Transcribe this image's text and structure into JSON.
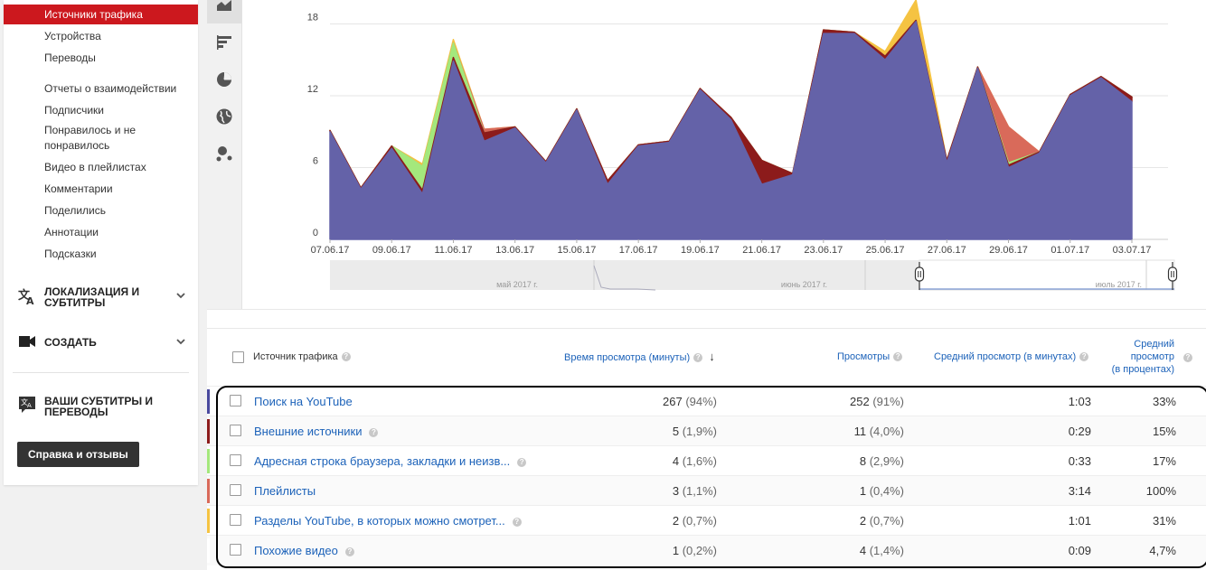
{
  "sidebar": {
    "active": "Источники трафика",
    "items": [
      "Устройства",
      "Переводы",
      "Отчеты о взаимодействии",
      "Подписчики",
      "Понравилось и не понравилось",
      "Видео в плейлистах",
      "Комментарии",
      "Поделились",
      "Аннотации",
      "Подсказки"
    ],
    "sections": [
      {
        "label": "Локализация и субтитры",
        "icon": "translate-icon"
      },
      {
        "label": "Создать",
        "icon": "video-camera-icon"
      },
      {
        "label": "Ваши субтитры и переводы",
        "icon": "subtitles-translate-icon"
      }
    ],
    "help_button": "Справка и отзывы"
  },
  "toolbar": {
    "tools": [
      "area-chart-icon",
      "bar-chart-icon",
      "pie-chart-icon",
      "globe-icon",
      "bubble-chart-icon"
    ]
  },
  "chart_data": {
    "type": "area",
    "x": [
      "07.06.17",
      "08.06.17",
      "09.06.17",
      "10.06.17",
      "11.06.17",
      "12.06.17",
      "13.06.17",
      "14.06.17",
      "15.06.17",
      "16.06.17",
      "17.06.17",
      "18.06.17",
      "19.06.17",
      "20.06.17",
      "21.06.17",
      "22.06.17",
      "23.06.17",
      "24.06.17",
      "25.06.17",
      "26.06.17",
      "27.06.17",
      "28.06.17",
      "29.06.17",
      "30.06.17",
      "01.07.17",
      "02.07.17",
      "03.07.17"
    ],
    "x_tick_labels": [
      "07.06.17",
      "09.06.17",
      "11.06.17",
      "13.06.17",
      "15.06.17",
      "17.06.17",
      "19.06.17",
      "21.06.17",
      "23.06.17",
      "25.06.17",
      "27.06.17",
      "29.06.17",
      "01.07.17",
      "03.07.17"
    ],
    "y_ticks": [
      0,
      6,
      12,
      18
    ],
    "ylim": [
      0,
      20
    ],
    "series": [
      {
        "name": "Поиск на YouTube",
        "color": "#6462a8",
        "values": [
          9,
          4.2,
          7.6,
          3.8,
          14.9,
          8.2,
          9.3,
          6.4,
          10.8,
          4.6,
          7.8,
          8.1,
          12.5,
          10,
          4.6,
          5.4,
          17.2,
          17.2,
          15,
          18.2,
          6.4,
          14.3,
          6,
          7.2,
          12,
          13.5,
          11.5
        ]
      },
      {
        "name": "Внешние источники",
        "color": "#8c1b1b",
        "values": [
          0.1,
          0.1,
          0.2,
          0.3,
          0.3,
          0.7,
          0.1,
          0.1,
          0.1,
          0.3,
          0.1,
          0.1,
          0.1,
          0.2,
          2,
          0.1,
          0.3,
          0.1,
          0.3,
          0.1,
          0.2,
          0.1,
          0.2,
          0.1,
          0.1,
          0.1,
          0.4
        ]
      },
      {
        "name": "Адресная строка браузера, закладки и неизв...",
        "color": "#a4e87c",
        "values": [
          0,
          0,
          0,
          2,
          1.2,
          0,
          0,
          0,
          0,
          0,
          0,
          0,
          0,
          0,
          0,
          0,
          0,
          0,
          0,
          0,
          0,
          0,
          0.2,
          0,
          0,
          0,
          0
        ]
      },
      {
        "name": "Плейлисты",
        "color": "#d96a5a",
        "values": [
          0,
          0,
          0,
          0,
          0,
          0.3,
          0,
          0,
          0,
          0,
          0,
          0,
          0,
          0,
          0,
          0,
          0,
          0,
          0,
          0,
          0,
          0,
          3,
          0,
          0,
          0,
          0
        ]
      },
      {
        "name": "Разделы YouTube, в которых можно смотрет...",
        "color": "#f5c342",
        "values": [
          0,
          0,
          0,
          0.2,
          0.3,
          0,
          0,
          0,
          0,
          0,
          0,
          0,
          0,
          0,
          0,
          0,
          0,
          0,
          0.4,
          1.7,
          0,
          0,
          0,
          0,
          0,
          0,
          0
        ]
      }
    ],
    "navigator_labels": [
      "май 2017 г.",
      "июнь 2017 г.",
      "июль 2017 г."
    ]
  },
  "table": {
    "headers": {
      "source": "Источник трафика",
      "watch_time": "Время просмотра (минуты)",
      "views": "Просмотры",
      "avg_view": "Средний просмотр (в минутах)",
      "avg_pct": "Средний просмотр (в процентах)",
      "avg_pct_lines": [
        "Средний",
        "просмотр",
        "(в процентах)"
      ]
    },
    "rows": [
      {
        "name": "Поиск на YouTube",
        "color": "#4a4a9e",
        "watch": "267",
        "watch_pct": "(94%)",
        "views": "252",
        "views_pct": "(91%)",
        "avg": "1:03",
        "pct": "33%",
        "help": false
      },
      {
        "name": "Внешние источники",
        "color": "#8c1b1b",
        "watch": "5",
        "watch_pct": "(1,9%)",
        "views": "11",
        "views_pct": "(4,0%)",
        "avg": "0:29",
        "pct": "15%",
        "help": true
      },
      {
        "name": "Адресная строка браузера, закладки и неизв...",
        "color": "#a4e87c",
        "watch": "4",
        "watch_pct": "(1,6%)",
        "views": "8",
        "views_pct": "(2,9%)",
        "avg": "0:33",
        "pct": "17%",
        "help": true
      },
      {
        "name": "Плейлисты",
        "color": "#d96a5a",
        "watch": "3",
        "watch_pct": "(1,1%)",
        "views": "1",
        "views_pct": "(0,4%)",
        "avg": "3:14",
        "pct": "100%",
        "help": false
      },
      {
        "name": "Разделы YouTube, в которых можно смотрет...",
        "color": "#f5c342",
        "watch": "2",
        "watch_pct": "(0,7%)",
        "views": "2",
        "views_pct": "(0,7%)",
        "avg": "1:01",
        "pct": "31%",
        "help": true
      },
      {
        "name": "Похожие видео",
        "color": "#ffffff",
        "watch": "1",
        "watch_pct": "(0,2%)",
        "views": "4",
        "views_pct": "(1,4%)",
        "avg": "0:09",
        "pct": "4,7%",
        "help": true
      }
    ]
  }
}
